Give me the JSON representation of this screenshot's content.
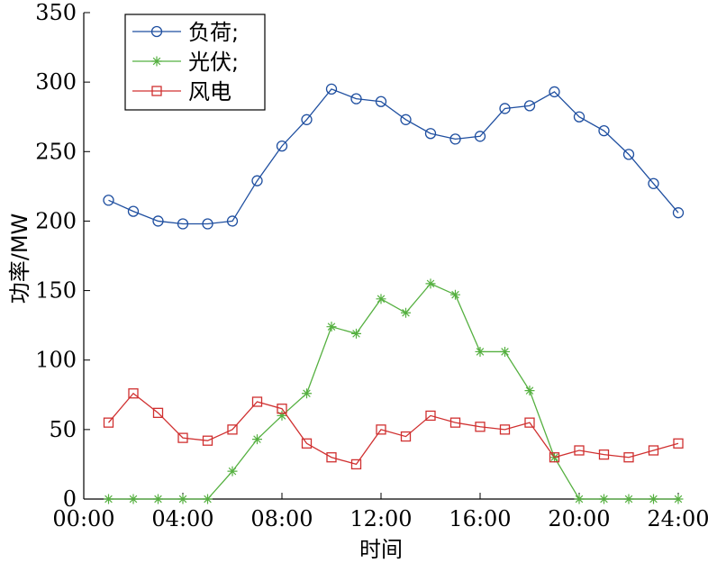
{
  "chart_data": {
    "type": "line",
    "xlabel": "时间",
    "ylabel": "功率/MW",
    "xlim": [
      0,
      24
    ],
    "ylim": [
      0,
      350
    ],
    "xticks": [
      0,
      4,
      8,
      12,
      16,
      20,
      24
    ],
    "xtick_labels": [
      "00:00",
      "04:00",
      "08:00",
      "12:00",
      "16:00",
      "20:00",
      "24:00"
    ],
    "yticks": [
      0,
      50,
      100,
      150,
      200,
      250,
      300,
      350
    ],
    "ytick_labels": [
      "0",
      "50",
      "100",
      "150",
      "200",
      "250",
      "300",
      "350"
    ],
    "grid": false,
    "legend": "top-left",
    "x": [
      1,
      2,
      3,
      4,
      5,
      6,
      7,
      8,
      9,
      10,
      11,
      12,
      13,
      14,
      15,
      16,
      17,
      18,
      19,
      20,
      21,
      22,
      23,
      24
    ],
    "series": [
      {
        "name": "负荷;",
        "color": "#1f4fa0",
        "marker": "circle",
        "values": [
          215,
          207,
          200,
          198,
          198,
          200,
          229,
          254,
          273,
          295,
          288,
          286,
          273,
          263,
          259,
          261,
          281,
          283,
          293,
          275,
          265,
          248,
          227,
          206
        ]
      },
      {
        "name": "光伏;",
        "color": "#55b040",
        "marker": "star",
        "values": [
          0,
          0,
          0,
          0,
          0,
          20,
          43,
          60,
          76,
          124,
          119,
          144,
          134,
          155,
          147,
          106,
          106,
          78,
          30,
          0,
          0,
          0,
          0,
          0
        ]
      },
      {
        "name": "风电",
        "color": "#d03030",
        "marker": "square",
        "values": [
          55,
          76,
          62,
          44,
          42,
          50,
          70,
          65,
          40,
          30,
          25,
          50,
          45,
          60,
          55,
          52,
          50,
          55,
          30,
          35,
          32,
          30,
          35,
          40
        ]
      }
    ]
  }
}
